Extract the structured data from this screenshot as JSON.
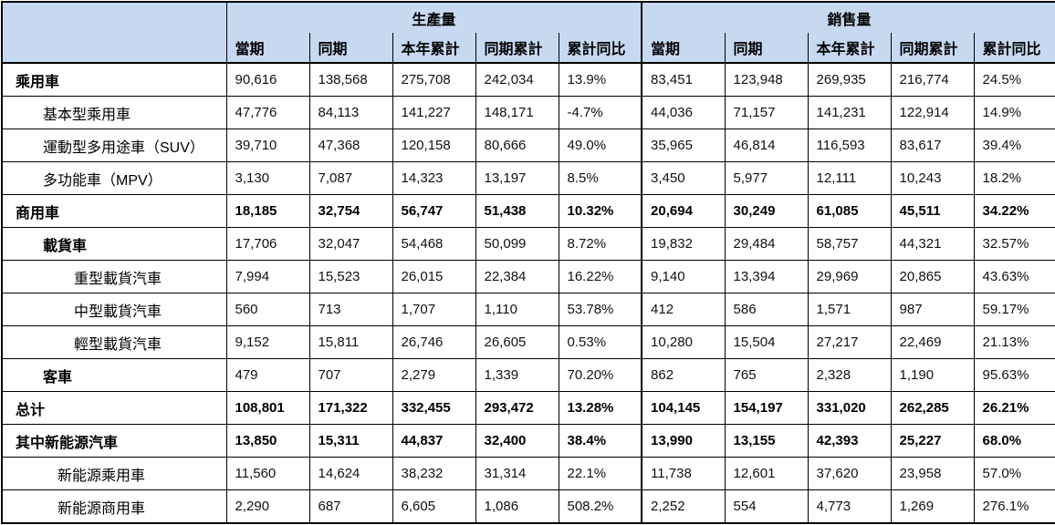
{
  "colors": {
    "header_bg": "#c7d9f1",
    "border": "#000000",
    "text": "#000000"
  },
  "chart_data": {
    "type": "table",
    "title": "",
    "column_groups": [
      "生產量",
      "銷售量"
    ],
    "sub_columns": [
      "當期",
      "同期",
      "本年累計",
      "同期累計",
      "累計同比"
    ],
    "rows": [
      {
        "label": "乘用車",
        "indent": 0,
        "bold_label": true,
        "bold_values": false,
        "production": [
          "90,616",
          "138,568",
          "275,708",
          "242,034",
          "13.9%"
        ],
        "sales": [
          "83,451",
          "123,948",
          "269,935",
          "216,774",
          "24.5%"
        ]
      },
      {
        "label": "基本型乘用車",
        "indent": 1,
        "bold_label": false,
        "bold_values": false,
        "production": [
          "47,776",
          "84,113",
          "141,227",
          "148,171",
          "-4.7%"
        ],
        "sales": [
          "44,036",
          "71,157",
          "141,231",
          "122,914",
          "14.9%"
        ]
      },
      {
        "label": "運動型多用途車（SUV）",
        "indent": 1,
        "bold_label": false,
        "bold_values": false,
        "production": [
          "39,710",
          "47,368",
          "120,158",
          "80,666",
          "49.0%"
        ],
        "sales": [
          "35,965",
          "46,814",
          "116,593",
          "83,617",
          "39.4%"
        ]
      },
      {
        "label": "多功能車（MPV）",
        "indent": 1,
        "bold_label": false,
        "bold_values": false,
        "production": [
          "3,130",
          "7,087",
          "14,323",
          "13,197",
          "8.5%"
        ],
        "sales": [
          "3,450",
          "5,977",
          "12,111",
          "10,243",
          "18.2%"
        ]
      },
      {
        "label": "商用車",
        "indent": 0,
        "bold_label": true,
        "bold_values": true,
        "production": [
          "18,185",
          "32,754",
          "56,747",
          "51,438",
          "10.32%"
        ],
        "sales": [
          "20,694",
          "30,249",
          "61,085",
          "45,511",
          "34.22%"
        ]
      },
      {
        "label": "載貨車",
        "indent": 1,
        "bold_label": true,
        "bold_values": false,
        "production": [
          "17,706",
          "32,047",
          "54,468",
          "50,099",
          "8.72%"
        ],
        "sales": [
          "19,832",
          "29,484",
          "58,757",
          "44,321",
          "32.57%"
        ]
      },
      {
        "label": "重型載貨汽車",
        "indent": 2,
        "bold_label": false,
        "bold_values": false,
        "production": [
          "7,994",
          "15,523",
          "26,015",
          "22,384",
          "16.22%"
        ],
        "sales": [
          "9,140",
          "13,394",
          "29,969",
          "20,865",
          "43.63%"
        ]
      },
      {
        "label": "中型載貨汽車",
        "indent": 2,
        "bold_label": false,
        "bold_values": false,
        "production": [
          "560",
          "713",
          "1,707",
          "1,110",
          "53.78%"
        ],
        "sales": [
          "412",
          "586",
          "1,571",
          "987",
          "59.17%"
        ]
      },
      {
        "label": "輕型載貨汽車",
        "indent": 2,
        "bold_label": false,
        "bold_values": false,
        "production": [
          "9,152",
          "15,811",
          "26,746",
          "26,605",
          "0.53%"
        ],
        "sales": [
          "10,280",
          "15,504",
          "27,217",
          "22,469",
          "21.13%"
        ]
      },
      {
        "label": "客車",
        "indent": 1,
        "bold_label": true,
        "bold_values": false,
        "production": [
          "479",
          "707",
          "2,279",
          "1,339",
          "70.20%"
        ],
        "sales": [
          "862",
          "765",
          "2,328",
          "1,190",
          "95.63%"
        ]
      },
      {
        "label": "总计",
        "indent": 0,
        "bold_label": true,
        "bold_values": true,
        "production": [
          "108,801",
          "171,322",
          "332,455",
          "293,472",
          "13.28%"
        ],
        "sales": [
          "104,145",
          "154,197",
          "331,020",
          "262,285",
          "26.21%"
        ]
      },
      {
        "label": "其中新能源汽車",
        "indent": 0,
        "bold_label": true,
        "bold_values": true,
        "production": [
          "13,850",
          "15,311",
          "44,837",
          "32,400",
          "38.4%"
        ],
        "sales": [
          "13,990",
          "13,155",
          "42,393",
          "25,227",
          "68.0%"
        ]
      },
      {
        "label": "新能源乘用車",
        "indent": 1.5,
        "bold_label": false,
        "bold_values": false,
        "production": [
          "11,560",
          "14,624",
          "38,232",
          "31,314",
          "22.1%"
        ],
        "sales": [
          "11,738",
          "12,601",
          "37,620",
          "23,958",
          "57.0%"
        ]
      },
      {
        "label": "新能源商用車",
        "indent": 1.5,
        "bold_label": false,
        "bold_values": false,
        "production": [
          "2,290",
          "687",
          "6,605",
          "1,086",
          "508.2%"
        ],
        "sales": [
          "2,252",
          "554",
          "4,773",
          "1,269",
          "276.1%"
        ]
      }
    ]
  }
}
